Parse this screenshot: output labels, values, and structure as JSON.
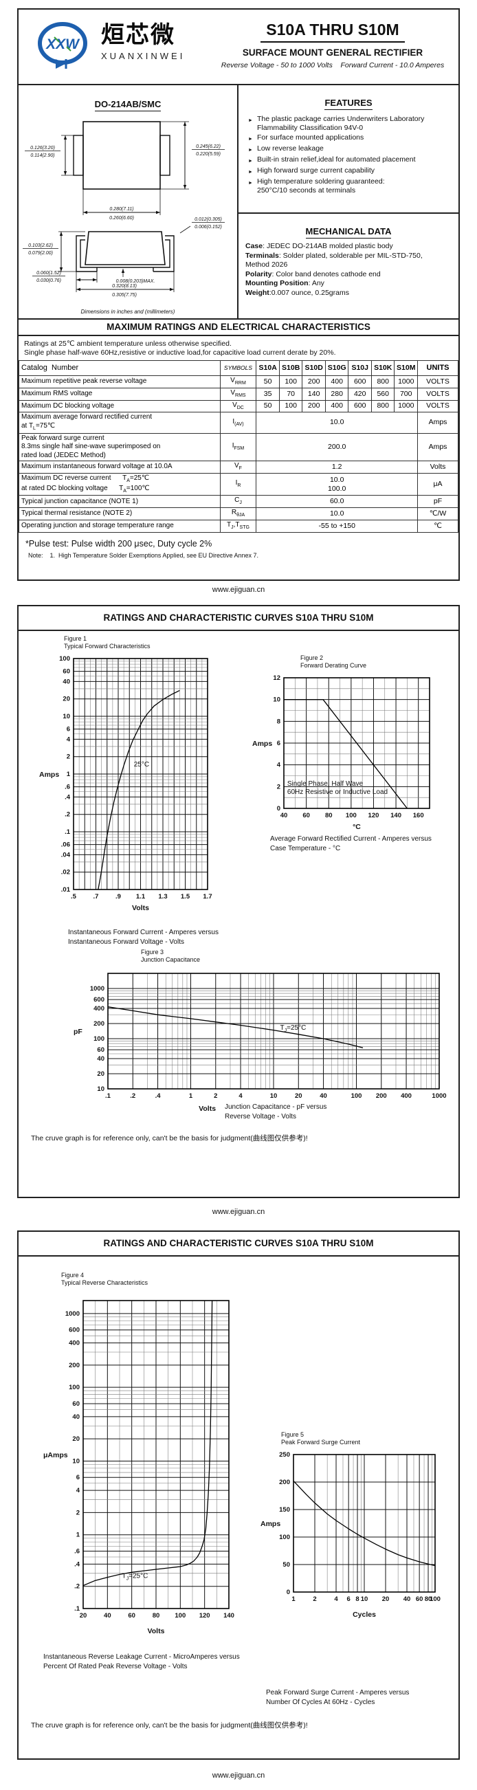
{
  "brand": {
    "logo_text": "XXW",
    "name_cn": "烜芯微",
    "name_en": "XUANXINWEI"
  },
  "header": {
    "part_range": "S10A THRU S10M",
    "product_type": "SURFACE MOUNT GENERAL RECTIFIER",
    "subtitle": "Reverse Voltage - 50 to 1000 Volts    Forward Current - 10.0 Amperes"
  },
  "package": {
    "name": "DO-214AB/SMC",
    "dims_note": "Dimensions in inches and (millimeters)",
    "dims": {
      "tab_height_top": "0.126(3.20)",
      "tab_height_bot": "0.114(2.90)",
      "body_height_top": "0.245(6.22)",
      "body_height_bot": "0.220(5.59)",
      "body_width_top": "0.280(7.11)",
      "body_width_bot": "0.260(6.60)",
      "lead_thick_top": "0.012(0.305)",
      "lead_thick_bot": "0.006(0.152)",
      "height_top": "0.103(2.62)",
      "height_bot": "0.079(2.00)",
      "lead_len_top": "0.060(1.52)",
      "lead_len_bot": "0.030(0.76)",
      "standoff": "0.008(0.203)MAX.",
      "total_width_top": "0.320(8.13)",
      "total_width_bot": "0.305(7.75)"
    }
  },
  "features": {
    "title": "FEATURES",
    "items": [
      "The plastic package carries Underwriters Laboratory\nFlammability Classification 94V-0",
      "For surface mounted applications",
      "Low reverse leakage",
      "Built-in strain relief,ideal for automated placement",
      "High forward surge current capability",
      "High temperature soldering guaranteed:\n250°C/10 seconds at terminals"
    ]
  },
  "mechanical": {
    "title": "MECHANICAL DATA",
    "lines": [
      {
        "label": "Case",
        "text": ": JEDEC DO-214AB molded plastic body"
      },
      {
        "label": "Terminals",
        "text": ": Solder plated, solderable per MIL-STD-750,\nMethod 2026"
      },
      {
        "label": "Polarity",
        "text": ": Color band denotes cathode end"
      },
      {
        "label": "Mounting Position",
        "text": ": Any"
      },
      {
        "label": "Weight",
        "text": ":0.007 ounce, 0.25grams"
      }
    ]
  },
  "ratings": {
    "title": "MAXIMUM RATINGS AND ELECTRICAL CHARACTERISTICS",
    "conditions": [
      "Ratings at 25℃ ambient temperature unless otherwise specified.",
      "Single phase half-wave 60Hz,resistive or inductive load,for capacitive load current derate by 20%."
    ],
    "table": {
      "col_param": "Catalog  Number",
      "col_symbols": "SYMBOLS",
      "parts": [
        "S10A",
        "S10B",
        "S10D",
        "S10G",
        "S10J",
        "S10K",
        "S10M"
      ],
      "col_units": "UNITS",
      "rows": [
        {
          "param": "Maximum repetitive peak reverse voltage",
          "sym": "V_{RRM}",
          "values": [
            "50",
            "100",
            "200",
            "400",
            "600",
            "800",
            "1000"
          ],
          "unit": "VOLTS"
        },
        {
          "param": "Maximum RMS voltage",
          "sym": "V_{RMS}",
          "values": [
            "35",
            "70",
            "140",
            "280",
            "420",
            "560",
            "700"
          ],
          "unit": "VOLTS"
        },
        {
          "param": "Maximum DC blocking voltage",
          "sym": "V_{DC}",
          "values": [
            "50",
            "100",
            "200",
            "400",
            "600",
            "800",
            "1000"
          ],
          "unit": "VOLTS"
        },
        {
          "param": "Maximum average forward rectified current\nat T_{L}=75℃",
          "sym": "I_{(AV)}",
          "span": "10.0",
          "unit": "Amps"
        },
        {
          "param": "Peak forward surge current\n8.3ms single half sine-wave superimposed on\nrated load (JEDEC Method)",
          "sym": "I_{FSM}",
          "span": "200.0",
          "unit": "Amps"
        },
        {
          "param": "Maximum instantaneous forward voltage at 10.0A",
          "sym": "V_{F}",
          "span": "1.2",
          "unit": "Volts"
        },
        {
          "param": "Maximum DC reverse current      T_{A}=25℃\nat rated DC blocking voltage      T_{A}=100℃",
          "sym": "I_{R}",
          "span": "10.0\n100.0",
          "unit": "μA"
        },
        {
          "param": "Typical junction capacitance (NOTE 1)",
          "sym": "C_{J}",
          "span": "60.0",
          "unit": "pF"
        },
        {
          "param": "Typical thermal resistance (NOTE 2)",
          "sym": "R_{θJA}",
          "span": "10.0",
          "unit": "℃/W"
        },
        {
          "param": "Operating junction and storage temperature range",
          "sym": "T_{J},T_{STG}",
          "span": "-55 to +150",
          "unit": "℃"
        }
      ]
    },
    "pulse_note": "*Pulse test: Pulse width 200 μsec, Duty cycle 2%",
    "note": "Note:    1.  High Temperature Solder Exemptions Applied, see EU Directive Annex 7."
  },
  "curves_title": "RATINGS AND CHARACTERISTIC CURVES S10A THRU S10M",
  "reference_note": "The cruve graph is for reference only, can't be the basis for judgment(曲线图仅供参考)!",
  "footer_url": "www.ejiguan.cn",
  "chart_data": [
    {
      "id": "fig1",
      "type": "line",
      "title": "Figure 1",
      "subtitle": "Typical Forward Characteristics",
      "xlabel": "Volts",
      "ylabel": "Amps",
      "x": {
        "type": "linear",
        "min": 0.5,
        "max": 1.7,
        "gridStep": 0.05,
        "strongStep": 0.1,
        "ticks": [
          [
            0.5,
            ".5"
          ],
          [
            0.7,
            ".7"
          ],
          [
            0.9,
            ".9"
          ],
          [
            1.1,
            "1.1"
          ],
          [
            1.3,
            "1.3"
          ],
          [
            1.5,
            "1.5"
          ],
          [
            1.7,
            "1.7"
          ]
        ]
      },
      "y": {
        "type": "log",
        "min": 0.01,
        "max": 100,
        "ticks": [
          [
            100,
            "100"
          ],
          [
            60,
            "60"
          ],
          [
            40,
            "40"
          ],
          [
            20,
            "20"
          ],
          [
            10,
            "10"
          ],
          [
            6,
            "6"
          ],
          [
            4,
            "4"
          ],
          [
            2,
            "2"
          ],
          [
            1,
            "1"
          ],
          [
            0.6,
            ".6"
          ],
          [
            0.4,
            ".4"
          ],
          [
            0.2,
            ".2"
          ],
          [
            0.1,
            ".1"
          ],
          [
            0.06,
            ".06"
          ],
          [
            0.04,
            ".04"
          ],
          [
            0.02,
            ".02"
          ],
          [
            0.01,
            ".01"
          ]
        ]
      },
      "series": [
        {
          "name": "25°C",
          "points": [
            [
              0.72,
              0.01
            ],
            [
              0.74,
              0.016
            ],
            [
              0.76,
              0.028
            ],
            [
              0.78,
              0.05
            ],
            [
              0.8,
              0.085
            ],
            [
              0.83,
              0.17
            ],
            [
              0.86,
              0.32
            ],
            [
              0.89,
              0.55
            ],
            [
              0.92,
              0.9
            ],
            [
              0.95,
              1.4
            ],
            [
              0.99,
              2.4
            ],
            [
              1.03,
              3.8
            ],
            [
              1.08,
              6
            ],
            [
              1.12,
              8.5
            ],
            [
              1.16,
              11
            ],
            [
              1.22,
              15
            ],
            [
              1.3,
              19.5
            ],
            [
              1.38,
              24
            ],
            [
              1.45,
              28
            ]
          ]
        }
      ],
      "annotation": {
        "x": 1.04,
        "y": 1.35,
        "lines": [
          "25°C"
        ]
      },
      "caption": [
        "Instantaneous Forward Current - Amperes versus",
        "Instantaneous Forward Voltage - Volts"
      ]
    },
    {
      "id": "fig2",
      "type": "line",
      "title": "Figure 2",
      "subtitle": "Forward Derating Curve",
      "xlabel": "°C",
      "ylabel": "Amps",
      "x": {
        "type": "linear",
        "min": 40,
        "max": 170,
        "gridStep": 10,
        "ticks": [
          [
            40,
            "40"
          ],
          [
            60,
            "60"
          ],
          [
            80,
            "80"
          ],
          [
            100,
            "100"
          ],
          [
            120,
            "120"
          ],
          [
            140,
            "140"
          ],
          [
            160,
            "160"
          ]
        ]
      },
      "y": {
        "type": "linear",
        "min": 0,
        "max": 12,
        "gridStep": 1,
        "ticks": [
          [
            0,
            "0"
          ],
          [
            2,
            "2"
          ],
          [
            4,
            "4"
          ],
          [
            6,
            "6"
          ],
          [
            8,
            "8"
          ],
          [
            10,
            "10"
          ],
          [
            12,
            "12"
          ]
        ]
      },
      "series": [
        {
          "name": "derating",
          "points": [
            [
              40,
              10
            ],
            [
              75,
              10
            ],
            [
              150,
              0
            ]
          ]
        }
      ],
      "annotation": {
        "x": 43,
        "y": 2.1,
        "lines": [
          "Single Phase, Half Wave",
          "60Hz Resistive or Inductive Load"
        ]
      },
      "caption": [
        "Average Forward Rectified Current  -  Amperes versus",
        "Case Temperature  - °C"
      ]
    },
    {
      "id": "fig3",
      "type": "line",
      "title": "Figure 3",
      "subtitle": "Junction Capacitance",
      "xlabel": "Volts",
      "ylabel": "pF",
      "xlabelPos": 0.3,
      "x": {
        "type": "log",
        "min": 0.1,
        "max": 1000,
        "ticks": [
          [
            0.1,
            ".1"
          ],
          [
            0.2,
            ".2"
          ],
          [
            0.4,
            ".4"
          ],
          [
            1,
            "1"
          ],
          [
            2,
            "2"
          ],
          [
            4,
            "4"
          ],
          [
            10,
            "10"
          ],
          [
            20,
            "20"
          ],
          [
            40,
            "40"
          ],
          [
            100,
            "100"
          ],
          [
            200,
            "200"
          ],
          [
            400,
            "400"
          ],
          [
            1000,
            "1000"
          ]
        ]
      },
      "y": {
        "type": "log",
        "min": 10,
        "max": 2000,
        "ticks": [
          [
            1000,
            "1000"
          ],
          [
            600,
            "600"
          ],
          [
            400,
            "400"
          ],
          [
            200,
            "200"
          ],
          [
            100,
            "100"
          ],
          [
            60,
            "60"
          ],
          [
            40,
            "40"
          ],
          [
            20,
            "20"
          ],
          [
            10,
            "10"
          ]
        ]
      },
      "series": [
        {
          "name": "Cj",
          "points": [
            [
              0.1,
              430
            ],
            [
              0.2,
              360
            ],
            [
              0.4,
              300
            ],
            [
              1,
              250
            ],
            [
              2,
              215
            ],
            [
              4,
              185
            ],
            [
              10,
              148
            ],
            [
              20,
              122
            ],
            [
              40,
              100
            ],
            [
              80,
              78
            ],
            [
              120,
              66
            ]
          ]
        }
      ],
      "annotation": {
        "x": 12,
        "y": 150,
        "lines": [
          "T_{J}=25°C"
        ]
      },
      "caption": [
        "Junction Capacitance - pF versus",
        "Reverse Voltage - Volts"
      ]
    },
    {
      "id": "fig4",
      "type": "line",
      "title": "Figure 4",
      "subtitle": "Typical Reverse Characteristics",
      "xlabel": "Volts",
      "ylabel": "μAmps",
      "x": {
        "type": "linear",
        "min": 20,
        "max": 140,
        "gridStep": 10,
        "ticks": [
          [
            20,
            "20"
          ],
          [
            40,
            "40"
          ],
          [
            60,
            "60"
          ],
          [
            80,
            "80"
          ],
          [
            100,
            "100"
          ],
          [
            120,
            "120"
          ],
          [
            140,
            "140"
          ]
        ]
      },
      "y": {
        "type": "log",
        "min": 0.1,
        "max": 1500,
        "ticks": [
          [
            1000,
            "1000"
          ],
          [
            600,
            "600"
          ],
          [
            400,
            "400"
          ],
          [
            200,
            "200"
          ],
          [
            100,
            "100"
          ],
          [
            60,
            "60"
          ],
          [
            40,
            "40"
          ],
          [
            20,
            "20"
          ],
          [
            10,
            "10"
          ],
          [
            6,
            "6"
          ],
          [
            4,
            "4"
          ],
          [
            2,
            "2"
          ],
          [
            1,
            "1"
          ],
          [
            0.6,
            ".6"
          ],
          [
            0.4,
            ".4"
          ],
          [
            0.2,
            ".2"
          ],
          [
            0.1,
            ".1"
          ]
        ]
      },
      "series": [
        {
          "name": "leakage",
          "points": [
            [
              20,
              0.205
            ],
            [
              30,
              0.24
            ],
            [
              40,
              0.265
            ],
            [
              50,
              0.29
            ],
            [
              60,
              0.31
            ],
            [
              70,
              0.325
            ],
            [
              80,
              0.34
            ],
            [
              90,
              0.355
            ],
            [
              100,
              0.37
            ],
            [
              105,
              0.39
            ],
            [
              108,
              0.41
            ],
            [
              111,
              0.44
            ],
            [
              114,
              0.5
            ],
            [
              116,
              0.57
            ],
            [
              118,
              0.7
            ],
            [
              119.5,
              0.85
            ],
            [
              121,
              1.2
            ],
            [
              122,
              1.9
            ],
            [
              123,
              3.5
            ],
            [
              124,
              8
            ],
            [
              124.8,
              25
            ],
            [
              125.4,
              90
            ],
            [
              125.8,
              350
            ],
            [
              126.2,
              1500
            ]
          ]
        }
      ],
      "annotation": {
        "x": 52,
        "y": 0.26,
        "lines": [
          "T_{J}=25°C"
        ]
      },
      "caption": [
        "Instantaneous Reverse Leakage Current - MicroAmperes versus",
        "Percent Of Rated Peak Reverse Voltage - Volts"
      ]
    },
    {
      "id": "fig5",
      "type": "line",
      "title": "Figure 5",
      "subtitle": "Peak Forward Surge Current",
      "xlabel": "Cycles",
      "ylabel": "Amps",
      "x": {
        "type": "log",
        "min": 1,
        "max": 100,
        "ticks": [
          [
            1,
            "1"
          ],
          [
            2,
            "2"
          ],
          [
            4,
            "4"
          ],
          [
            6,
            "6"
          ],
          [
            8,
            "8"
          ],
          [
            10,
            "10"
          ],
          [
            20,
            "20"
          ],
          [
            40,
            "40"
          ],
          [
            60,
            "60"
          ],
          [
            80,
            "80"
          ],
          [
            100,
            "100"
          ]
        ]
      },
      "y": {
        "type": "linear",
        "min": 0,
        "max": 250,
        "gridStep": 50,
        "ticks": [
          [
            0,
            "0"
          ],
          [
            50,
            "50"
          ],
          [
            100,
            "100"
          ],
          [
            150,
            "150"
          ],
          [
            200,
            "200"
          ],
          [
            250,
            "250"
          ]
        ]
      },
      "series": [
        {
          "name": "surge",
          "points": [
            [
              1,
              202
            ],
            [
              1.5,
              178
            ],
            [
              2,
              162
            ],
            [
              3,
              142
            ],
            [
              4,
              130
            ],
            [
              6,
              115
            ],
            [
              8,
              105
            ],
            [
              10,
              98
            ],
            [
              15,
              86
            ],
            [
              20,
              78
            ],
            [
              30,
              68
            ],
            [
              40,
              62
            ],
            [
              60,
              55
            ],
            [
              80,
              51
            ],
            [
              100,
              48
            ]
          ]
        }
      ],
      "annotation": null,
      "caption": [
        "Peak Forward Surge Current - Amperes versus",
        "Number Of Cycles At 60Hz - Cycles"
      ]
    }
  ]
}
